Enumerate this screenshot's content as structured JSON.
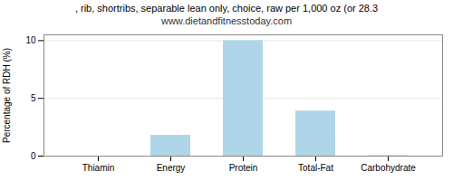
{
  "chart_data": {
    "type": "bar",
    "title": ", rib, shortribs, separable lean only, choice, raw per 1,000 oz (or 28.3",
    "subtitle": "www.dietandfitnesstoday.com",
    "categories": [
      "Thiamin",
      "Energy",
      "Protein",
      "Total-Fat",
      "Carbohydrate"
    ],
    "values": [
      0.0,
      1.8,
      10.0,
      3.9,
      0.05
    ],
    "color": "#aed6e8",
    "ylabel": "Percentage of RDH (%)",
    "ylim": [
      0,
      10.5
    ],
    "yticks": [
      0,
      5,
      10
    ],
    "grid": true
  }
}
